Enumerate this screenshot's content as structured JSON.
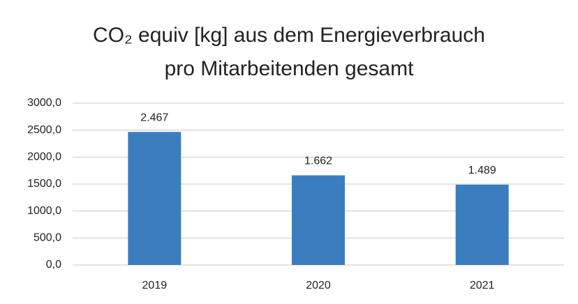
{
  "chart_data": {
    "type": "bar",
    "title": [
      "CO₂ equiv [kg] aus dem Energieverbrauch",
      "pro Mitarbeitenden gesamt"
    ],
    "categories": [
      "2019",
      "2020",
      "2021"
    ],
    "values": [
      2467,
      1662,
      1489
    ],
    "value_labels": [
      "2.467",
      "1.662",
      "1.489"
    ],
    "color": "#3b7ec0",
    "ylim": [
      0,
      3000
    ],
    "yticks": [
      {
        "value": 0,
        "label": "0,0"
      },
      {
        "value": 500,
        "label": "500,0"
      },
      {
        "value": 1000,
        "label": "1000,0"
      },
      {
        "value": 1500,
        "label": "1500,0"
      },
      {
        "value": 2000,
        "label": "2000,0"
      },
      {
        "value": 2500,
        "label": "2500,0"
      },
      {
        "value": 3000,
        "label": "3000,0"
      }
    ],
    "grid": true
  }
}
